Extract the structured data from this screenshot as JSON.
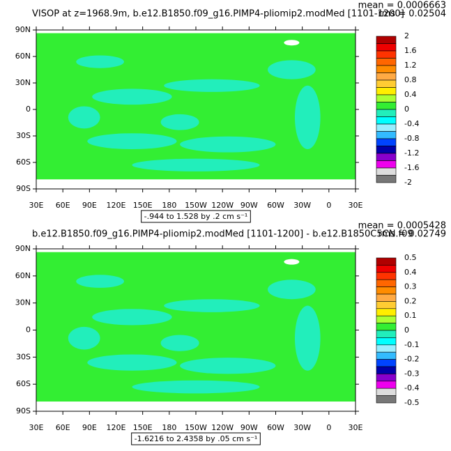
{
  "panels": [
    {
      "title": "VISOP at z=1968.9m, b.e12.B1850.f09_g16.PIMP4-pliomip2.modMed [1101-1200]",
      "mean": "mean = 0.0006663",
      "rms": "rms = 0.02504",
      "lat_labels": [
        "90N",
        "60N",
        "30N",
        "0",
        "30S",
        "60S",
        "90S"
      ],
      "lon_labels": [
        "30E",
        "60E",
        "90E",
        "120E",
        "150E",
        "180",
        "150W",
        "120W",
        "90W",
        "60W",
        "30W",
        "0",
        "30E"
      ],
      "colorbar_labels": [
        "2",
        "1.6",
        "1.2",
        "0.8",
        "0.4",
        "0",
        "-0.4",
        "-0.8",
        "-1.2",
        "-1.6",
        "-2"
      ],
      "range_label": "-.944 to 1.528 by .2 cm s⁻¹"
    },
    {
      "title": "b.e12.B1850.f09_g16.PIMP4-pliomip2.modMed [1101-1200] - b.e12.B1850C5CN.f09",
      "mean": "mean = 0.0005428",
      "rms": "rms = 0.02749",
      "lat_labels": [
        "90N",
        "60N",
        "30N",
        "0",
        "30S",
        "60S",
        "90S"
      ],
      "lon_labels": [
        "30E",
        "60E",
        "90E",
        "120E",
        "150E",
        "180",
        "150W",
        "120W",
        "90W",
        "60W",
        "30W",
        "0",
        "30E"
      ],
      "colorbar_labels": [
        "0.5",
        "0.4",
        "0.3",
        "0.2",
        "0.1",
        "0",
        "-0.1",
        "-0.2",
        "-0.3",
        "-0.4",
        "-0.5"
      ],
      "range_label": "-1.6216 to 2.4358 by .05 cm s⁻¹"
    }
  ],
  "colorbar_colors": [
    "#b00000",
    "#ee0000",
    "#ff3300",
    "#ff6600",
    "#ff8c00",
    "#ffaa44",
    "#ffcc33",
    "#ffee00",
    "#aaff33",
    "#33ee33",
    "#22eebb",
    "#00ffff",
    "#99eeff",
    "#33bbff",
    "#0044ff",
    "#0000aa",
    "#8800cc",
    "#ee00ee",
    "#dddddd",
    "#777777"
  ]
}
